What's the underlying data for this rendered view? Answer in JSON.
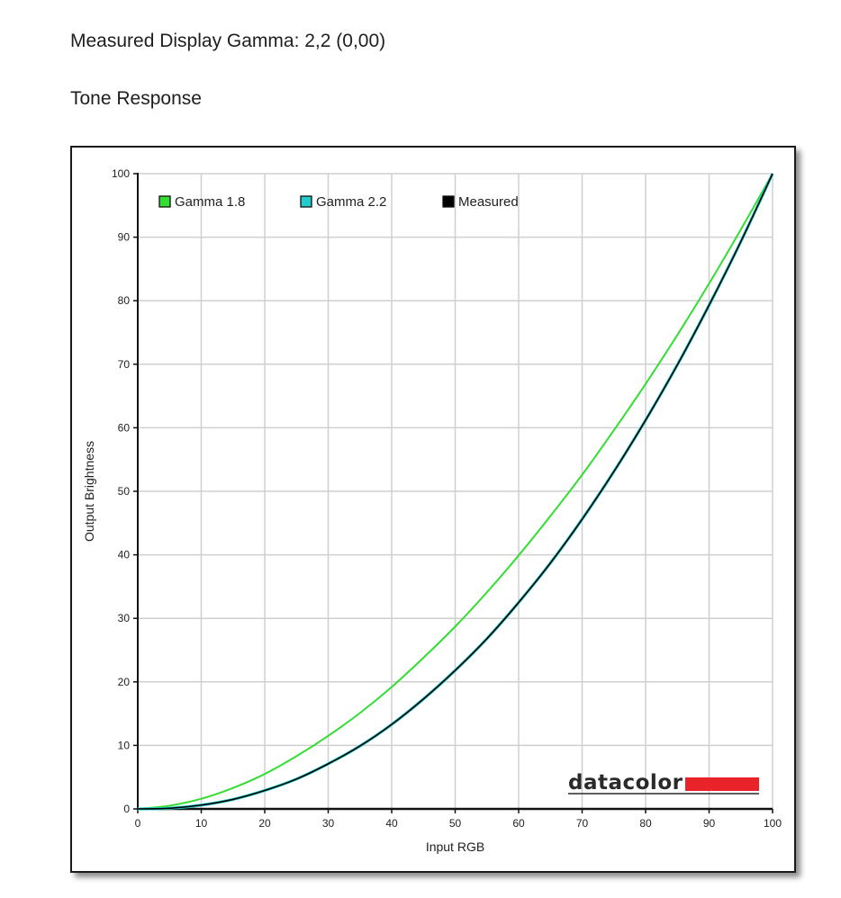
{
  "header": {
    "measured_gamma": "Measured Display Gamma: 2,2 (0,00)",
    "section_title": "Tone Response"
  },
  "logo": {
    "text": "datacolor",
    "bar_color": "#e8232a"
  },
  "chart_data": {
    "type": "line",
    "title": "",
    "xlabel": "Input RGB",
    "ylabel": "Output Brightness",
    "xlim": [
      0,
      100
    ],
    "ylim": [
      0,
      100
    ],
    "grid": true,
    "x_ticks": [
      0,
      10,
      20,
      30,
      40,
      50,
      60,
      70,
      80,
      90,
      100
    ],
    "y_ticks": [
      0,
      10,
      20,
      30,
      40,
      50,
      60,
      70,
      80,
      90,
      100
    ],
    "legend_position": "top-left",
    "x": [
      0,
      5,
      10,
      15,
      20,
      25,
      30,
      35,
      40,
      45,
      50,
      55,
      60,
      65,
      70,
      75,
      80,
      85,
      90,
      95,
      100
    ],
    "series": [
      {
        "name": "Gamma 1.8",
        "color": "#33dd33",
        "values": [
          0,
          0.5,
          1.6,
          3.3,
          5.5,
          8.3,
          11.5,
          15.1,
          19.2,
          23.8,
          28.7,
          34.1,
          39.9,
          46.1,
          52.6,
          59.6,
          66.9,
          74.6,
          82.7,
          91.2,
          100
        ]
      },
      {
        "name": "Gamma 2.2",
        "color": "#22cccc",
        "values": [
          0,
          0.1,
          0.6,
          1.5,
          2.9,
          4.7,
          7.1,
          9.9,
          13.3,
          17.3,
          21.8,
          26.8,
          32.5,
          38.7,
          45.6,
          53.1,
          61.2,
          69.9,
          79.3,
          89.3,
          100
        ]
      },
      {
        "name": "Measured",
        "color": "#000000",
        "values": [
          0,
          0.1,
          0.6,
          1.5,
          2.9,
          4.7,
          7.1,
          9.9,
          13.3,
          17.3,
          21.8,
          26.8,
          32.5,
          38.7,
          45.6,
          53.1,
          61.2,
          69.9,
          79.3,
          89.3,
          100
        ]
      }
    ]
  }
}
